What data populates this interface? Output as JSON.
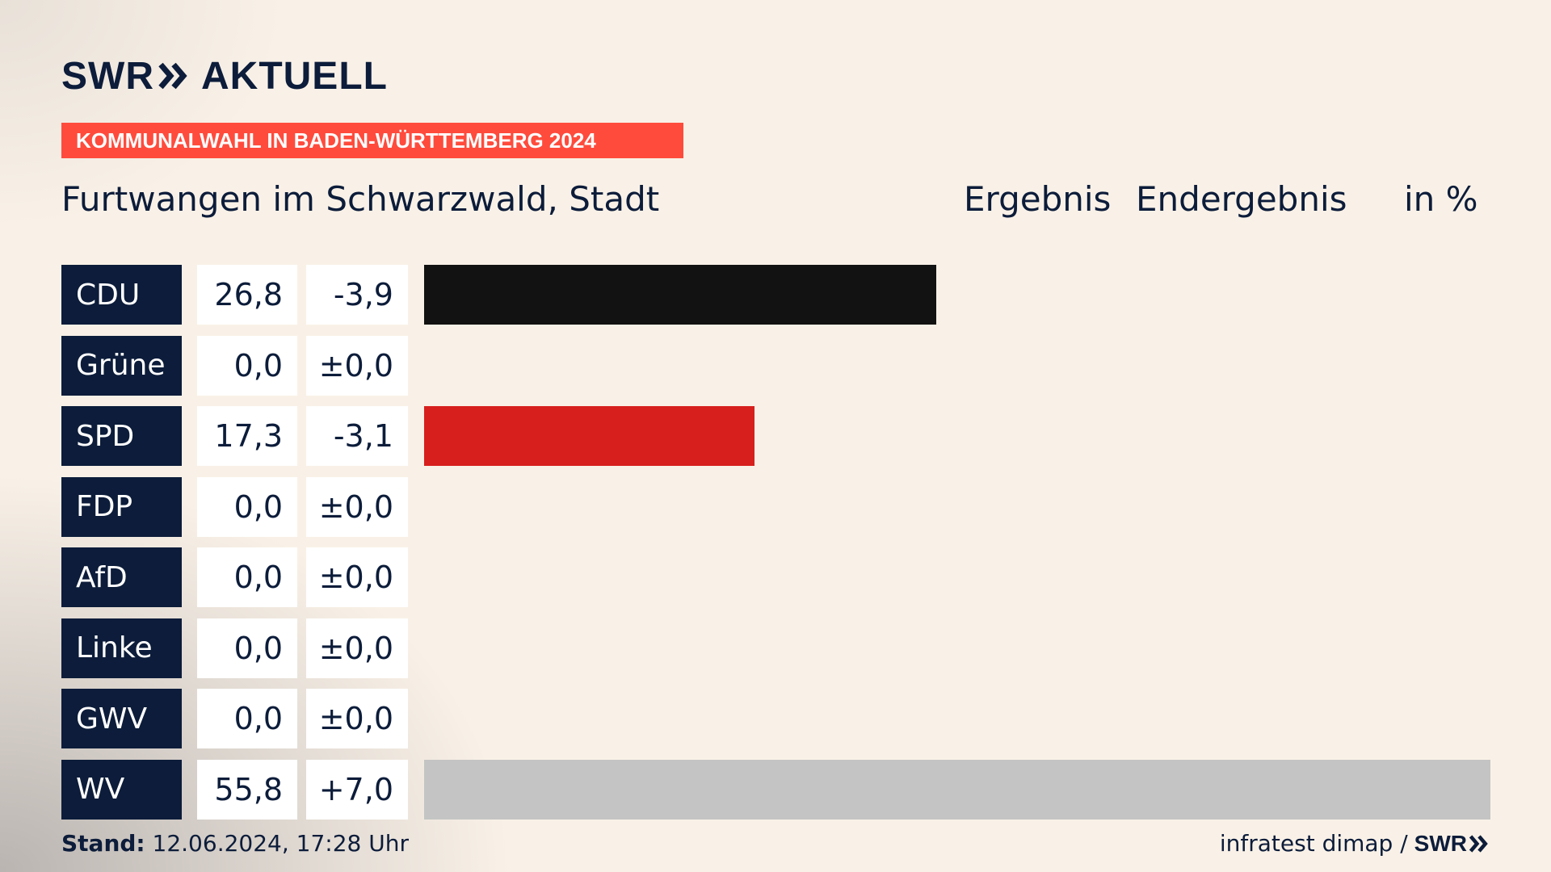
{
  "header": {
    "logo_text": "SWR",
    "logo_suffix": "AKTUELL",
    "banner": "KOMMUNALWAHL IN BADEN-WÜRTTEMBERG 2024",
    "place": "Furtwangen im Schwarzwald, Stadt",
    "col_result": "Ergebnis",
    "col_status": "Endergebnis",
    "col_unit": "in %"
  },
  "footer": {
    "stand_label": "Stand:",
    "stand_value": "12.06.2024, 17:28 Uhr",
    "source": "infratest dimap /",
    "source_logo": "SWR"
  },
  "chart_data": {
    "type": "bar",
    "orientation": "horizontal",
    "categories": [
      "CDU",
      "Grüne",
      "SPD",
      "FDP",
      "AfD",
      "Linke",
      "GWV",
      "WV"
    ],
    "values": [
      26.8,
      0.0,
      17.3,
      0.0,
      0.0,
      0.0,
      0.0,
      55.8
    ],
    "value_labels": [
      "26,8",
      "0,0",
      "17,3",
      "0,0",
      "0,0",
      "0,0",
      "0,0",
      "55,8"
    ],
    "diff_labels": [
      "-3,9",
      "±0,0",
      "-3,1",
      "±0,0",
      "±0,0",
      "±0,0",
      "±0,0",
      "+7,0"
    ],
    "colors": [
      "#121212",
      "#46962b",
      "#d71f1d",
      "#ffe100",
      "#009ee0",
      "#be3075",
      "#9a9a9a",
      "#c4c4c4"
    ],
    "xlim": [
      0,
      55.8
    ]
  }
}
